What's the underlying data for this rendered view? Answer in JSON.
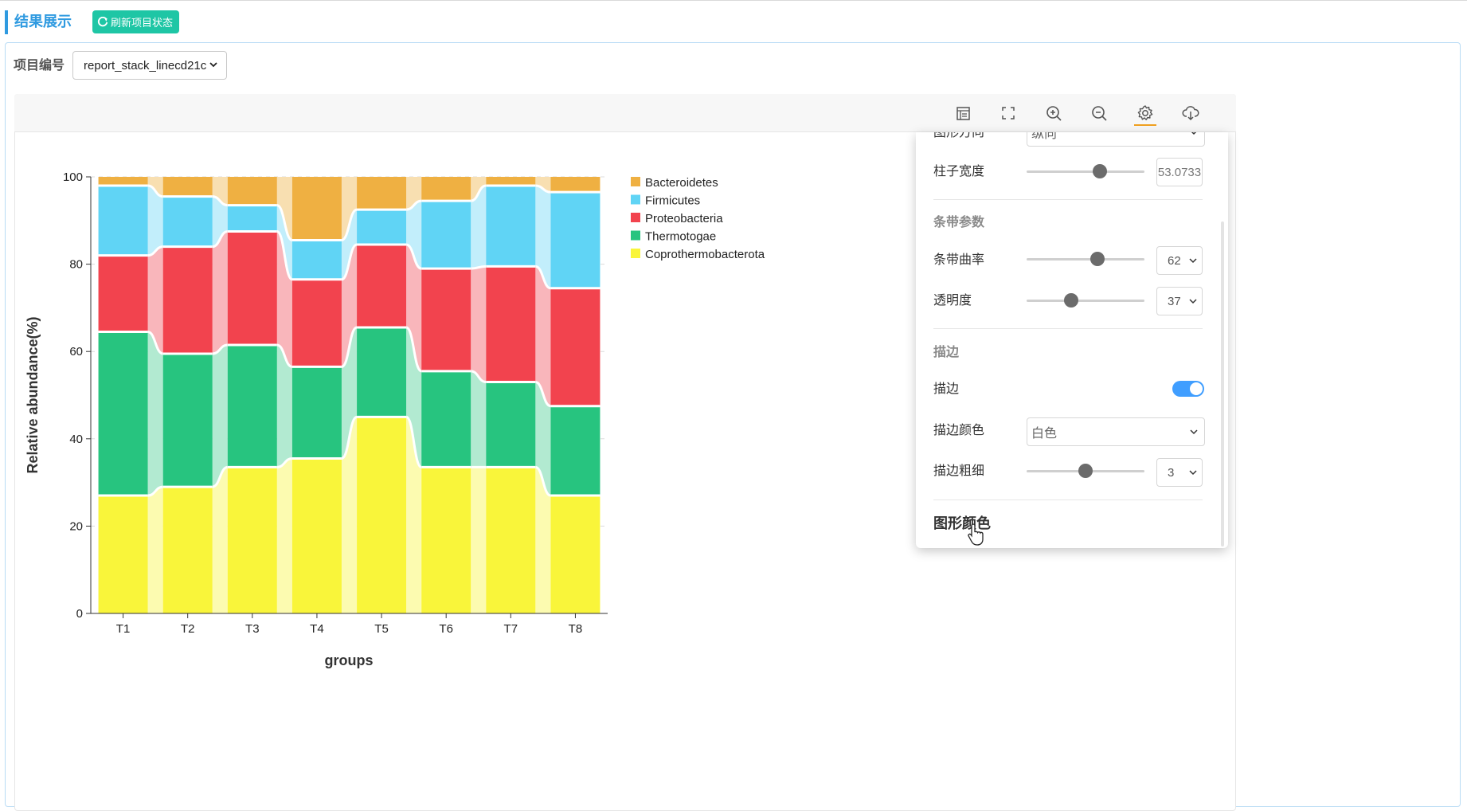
{
  "header": {
    "title": "结果展示",
    "refresh_label": "刷新项目状态"
  },
  "project": {
    "label": "项目编号",
    "selected": "report_stack_linecd21c"
  },
  "toolbar": {
    "icons": [
      "data-view-icon",
      "fullscreen-icon",
      "zoom-in-icon",
      "zoom-out-icon",
      "gear-icon",
      "download-icon"
    ]
  },
  "chart_data": {
    "type": "bar",
    "stacked": true,
    "categories": [
      "T1",
      "T2",
      "T3",
      "T4",
      "T5",
      "T6",
      "T7",
      "T8"
    ],
    "series": [
      {
        "name": "Coprothermobacterota",
        "color": "#f9f53a",
        "band_color": "#fcfbb0",
        "values": [
          27,
          29,
          33.5,
          35.5,
          45,
          33.5,
          33.5,
          27
        ]
      },
      {
        "name": "Thermotogae",
        "color": "#27c47f",
        "band_color": "#b2ead1",
        "values": [
          37.5,
          30.5,
          28,
          21,
          20.5,
          22,
          19.5,
          20.5
        ]
      },
      {
        "name": "Proteobacteria",
        "color": "#f2434e",
        "band_color": "#f9b6bb",
        "values": [
          17.5,
          24.5,
          26,
          20,
          19,
          23.5,
          26.5,
          27
        ]
      },
      {
        "name": "Firmicutes",
        "color": "#60d4f5",
        "band_color": "#c2eefb",
        "values": [
          16,
          11.5,
          6,
          9,
          8,
          15.5,
          18.5,
          22
        ]
      },
      {
        "name": "Bacteroidetes",
        "color": "#efb042",
        "band_color": "#f8dfb1",
        "values": [
          2,
          4.5,
          6.5,
          14.5,
          7.5,
          5.5,
          2,
          3.5
        ]
      }
    ],
    "legend_order": [
      "Bacteroidetes",
      "Firmicutes",
      "Proteobacteria",
      "Thermotogae",
      "Coprothermobacterota"
    ],
    "legend_position": "top-right",
    "xlabel": "groups",
    "ylabel": "Relative abundance(%)",
    "ylim": [
      0,
      100
    ],
    "yticks": [
      "0",
      "20",
      "40",
      "60",
      "80",
      "100"
    ],
    "grid": "dashed-horizontal"
  },
  "settings": {
    "partial_label": "图形方向",
    "partial_value": "纵向",
    "bar_width": {
      "label": "柱子宽度",
      "value": "53.0733",
      "fraction": 0.62
    },
    "band_section": "条带参数",
    "curvature": {
      "label": "条带曲率",
      "value": "62",
      "fraction": 0.6
    },
    "opacity": {
      "label": "透明度",
      "value": "37",
      "fraction": 0.38
    },
    "stroke_section": "描边",
    "stroke_toggle": {
      "label": "描边",
      "on": true
    },
    "stroke_color": {
      "label": "描边颜色",
      "value": "白色"
    },
    "stroke_width": {
      "label": "描边粗细",
      "value": "3",
      "fraction": 0.5
    },
    "color_heading": "图形颜色"
  }
}
